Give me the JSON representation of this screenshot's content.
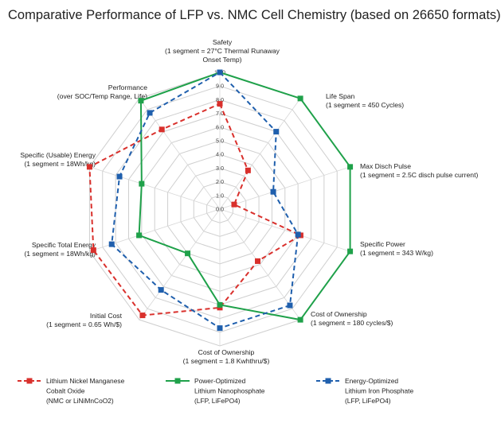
{
  "chart_data": {
    "type": "radar",
    "title": "Comparative Performance of LFP vs. NMC Cell Chemistry (based on 26650 formats)",
    "r_range": [
      0,
      10
    ],
    "ticks": [
      "0.0",
      "1.0",
      "2.0",
      "3.0",
      "4.0",
      "5.0",
      "6.0",
      "7.0",
      "8.0",
      "9.0",
      "10.0"
    ],
    "grid": true,
    "legend_position": "bottom",
    "axes": [
      {
        "lines": [
          "Safety",
          "(1 segment = 27°C Thermal Runaway",
          "Onset Temp)"
        ]
      },
      {
        "lines": [
          "Life Span",
          "(1 segment = 450 Cycles)"
        ]
      },
      {
        "lines": [
          "Max Disch Pulse",
          "(1 segment = 2.5C disch pulse current)"
        ]
      },
      {
        "lines": [
          "Specific Power",
          "(1 segment = 343 W/kg)"
        ]
      },
      {
        "lines": [
          "Cost of Ownership",
          "(1 segment = 180 cycles/$)"
        ]
      },
      {
        "lines": [
          "Cost of Ownership",
          "(1 segment = 1.8 Kwhthru/$)"
        ]
      },
      {
        "lines": [
          "Initial Cost",
          "(1 segment = 0.65 Wh/$)"
        ]
      },
      {
        "lines": [
          "Specific Total Energy",
          "(1 segment = 18Wh/kg)"
        ]
      },
      {
        "lines": [
          "Specific (Usable) Energy",
          "(1 segment = 18Wh/kg)"
        ]
      },
      {
        "lines": [
          "Performance",
          "(over SOC/Temp Range, Life)"
        ]
      }
    ],
    "series": [
      {
        "name": "Lithium Nickel Manganese Cobalt Oxide (NMC or LiNiMnCoO2)",
        "legend_lines": [
          "Lithium Nickel Manganese",
          "Cobalt Oxide",
          "(NMC or LiNiMnCoO2)"
        ],
        "color": "#d9302c",
        "style": "dashed",
        "values": [
          7.7,
          3.5,
          1.1,
          6.2,
          4.7,
          7.2,
          9.6,
          9.7,
          10.0,
          7.2
        ]
      },
      {
        "name": "Power-Optimized Lithium Nanophosphate (LFP, LiFePO4)",
        "legend_lines": [
          "Power-Optimized",
          "Lithium Nanophosphate",
          "(LFP, LiFePO4)"
        ],
        "color": "#1fa14a",
        "style": "solid",
        "values": [
          10.0,
          10.0,
          10.0,
          10.0,
          10.0,
          7.0,
          4.0,
          6.2,
          6.0,
          9.8
        ]
      },
      {
        "name": "Energy-Optimized Lithium Iron Phosphate (LFP, LiFePO4)",
        "legend_lines": [
          "Energy-Optimized",
          "Lithium Iron Phosphate",
          "(LFP, LiFePO4)"
        ],
        "color": "#1f5fad",
        "style": "dashed",
        "values": [
          10.0,
          7.0,
          4.1,
          6.0,
          8.7,
          8.7,
          7.3,
          8.3,
          7.7,
          8.7
        ]
      }
    ]
  }
}
